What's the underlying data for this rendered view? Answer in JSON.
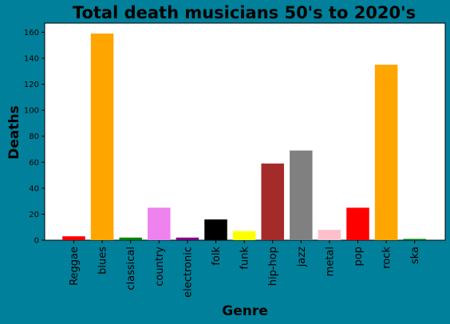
{
  "chart_data": {
    "type": "bar",
    "title": "Total death musicians 50's to 2020's",
    "xlabel": "Genre",
    "ylabel": "Deaths",
    "categories": [
      "Reggae",
      "blues",
      "classical",
      "country",
      "electronic",
      "folk",
      "funk",
      "hip-hop",
      "jazz",
      "metal",
      "pop",
      "rock",
      "ska"
    ],
    "values": [
      3,
      159,
      2,
      25,
      2,
      16,
      7,
      59,
      69,
      8,
      25,
      135,
      1
    ],
    "colors": [
      "#ff0000",
      "#ffa500",
      "#008000",
      "#ee82ee",
      "#800080",
      "#000000",
      "#ffff00",
      "#a52a2a",
      "#808080",
      "#ffc0cb",
      "#ff0000",
      "#ffa500",
      "#008000"
    ],
    "ylim": [
      0,
      167
    ],
    "yticks": [
      0,
      20,
      40,
      60,
      80,
      100,
      120,
      140,
      160
    ],
    "grid": false,
    "legend": "none",
    "background_color": "#00809b",
    "plot_background_color": "#ffffff"
  }
}
